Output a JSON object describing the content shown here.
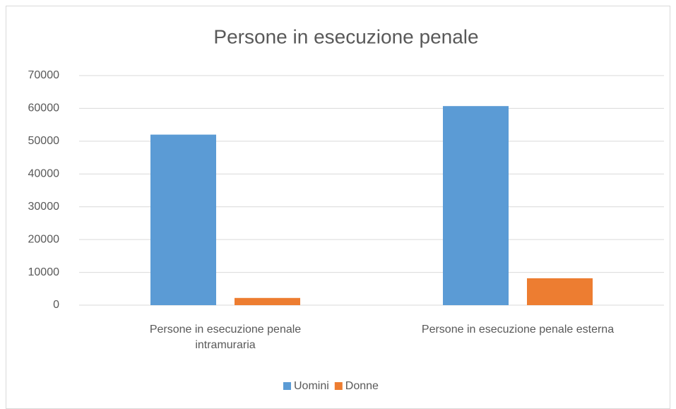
{
  "chart_data": {
    "type": "bar",
    "title": "Persone in esecuzione penale",
    "categories": [
      "Persone in esecuzione penale intramuraria",
      "Persone in esecuzione penale esterna"
    ],
    "series": [
      {
        "name": "Uomini",
        "color": "#5b9bd5",
        "values": [
          52000,
          60700
        ]
      },
      {
        "name": "Donne",
        "color": "#ed7d31",
        "values": [
          2200,
          8200
        ]
      }
    ],
    "ylim": [
      0,
      70000
    ],
    "yticks": [
      0,
      10000,
      20000,
      30000,
      40000,
      50000,
      60000,
      70000
    ],
    "grid": true,
    "legend": "bottom"
  }
}
